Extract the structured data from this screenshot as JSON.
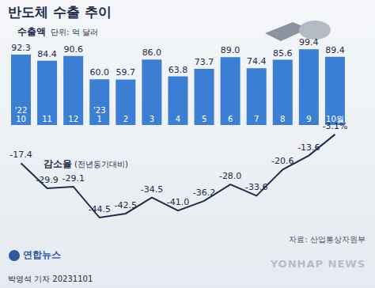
{
  "title": "반도체 수출 추이",
  "source": "자료: 산업통상자원부",
  "publisher": "연합뉴스",
  "credit": "박영석 기자 20231101",
  "watermark": "YONHAP NEWS",
  "chart_data": [
    {
      "type": "bar",
      "title": "수출액",
      "subtitle": "단위: 억 달러",
      "categories": [
        "'22\n10",
        "11",
        "12",
        "'23\n1",
        "2",
        "3",
        "4",
        "5",
        "6",
        "7",
        "8",
        "9",
        "10월"
      ],
      "values": [
        92.3,
        84.4,
        90.6,
        60.0,
        59.7,
        86.0,
        63.8,
        73.7,
        89.0,
        74.4,
        85.6,
        99.4,
        89.4
      ],
      "value_labels": [
        "92.3",
        "84.4",
        "90.6",
        "60.0",
        "59.7",
        "86.0",
        "63.8",
        "73.7",
        "89.0",
        "74.4",
        "85.6",
        "99.4",
        "89.4"
      ],
      "color": "#3b7fd4",
      "ylim": [
        0,
        110
      ],
      "data_labels": true,
      "tick_labels": "x",
      "grid": false
    },
    {
      "type": "line",
      "title": "감소율",
      "subtitle": "(전년동기대비)",
      "categories": [
        "'22\n10",
        "11",
        "12",
        "'23\n1",
        "2",
        "3",
        "4",
        "5",
        "6",
        "7",
        "8",
        "9",
        "10월"
      ],
      "values": [
        -17.4,
        -29.9,
        -29.1,
        -44.5,
        -42.5,
        -34.5,
        -41.0,
        -36.2,
        -28.0,
        -33.6,
        -20.6,
        -13.6,
        -3.1
      ],
      "value_labels": [
        "-17.4",
        "-29.9",
        "-29.1",
        "-44.5",
        "-42.5",
        "-34.5",
        "-41.0",
        "-36.2",
        "-28.0",
        "-33.6",
        "-20.6",
        "-13.6",
        "-3.1%"
      ],
      "color": "#1f2d4d",
      "ylim": [
        -50,
        0
      ],
      "data_labels": true,
      "tick_labels": false,
      "grid": false
    }
  ]
}
